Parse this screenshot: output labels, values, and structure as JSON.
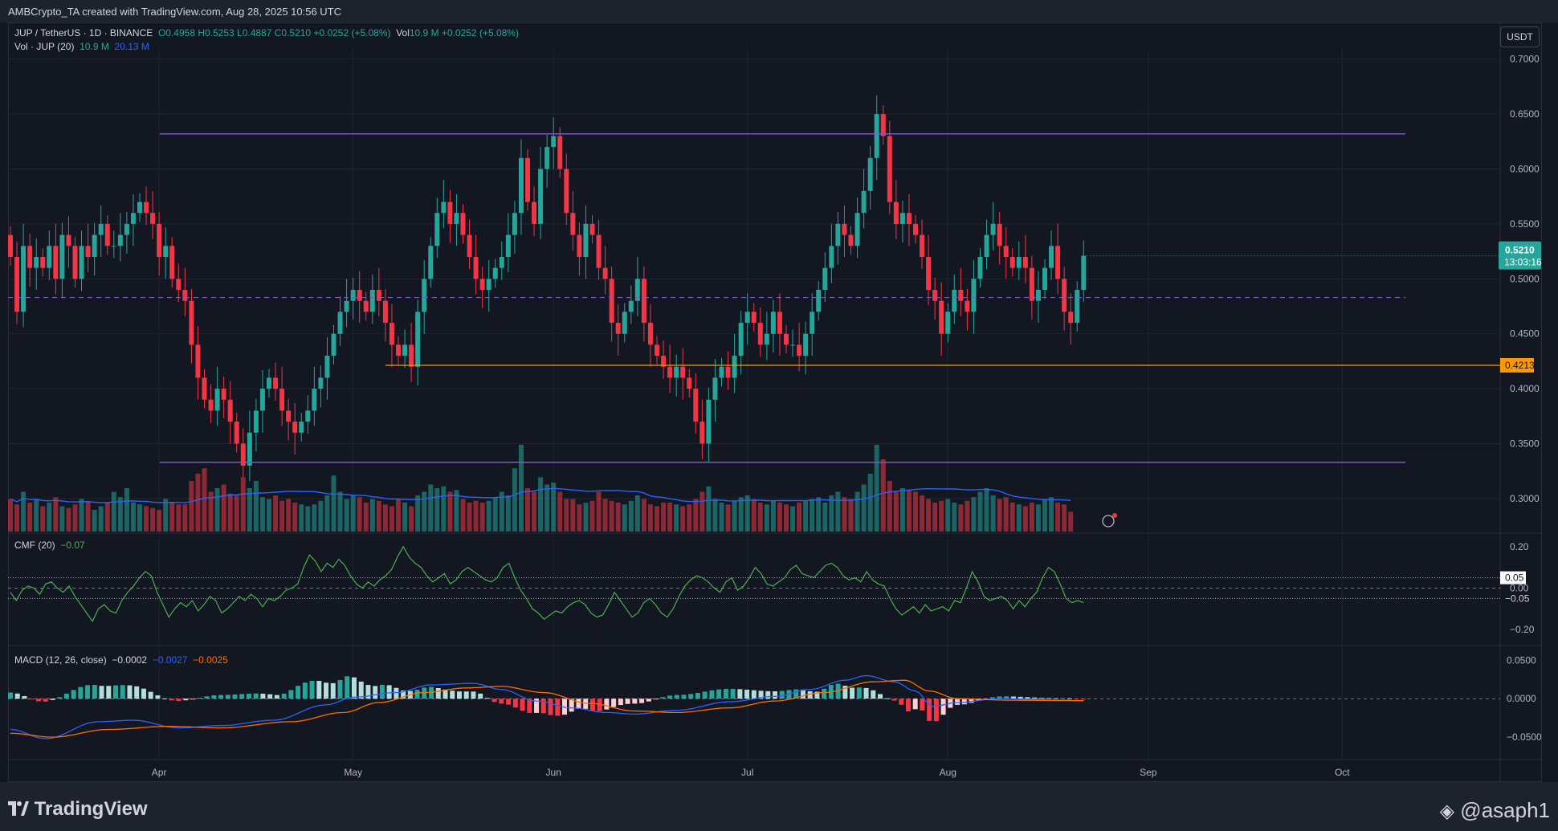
{
  "header": {
    "created_line": "AMBCrypto_TA created with TradingView.com, Aug 28, 2025 10:56 UTC"
  },
  "legend": {
    "symbol": "JUP / TetherUS · 1D · BINANCE",
    "ohlc": "O0.4958 H0.5253 L0.4887 C0.5210 +0.0252 (+5.08%)",
    "vol_label": "Vol",
    "vol_value": "10.9 M +0.0252 (+5.08%)",
    "vol_ind_label": "Vol · JUP (20)",
    "vol_ind_value": "10.9 M",
    "vol_ma_value": "20.13 M",
    "cmf_label": "CMF (20)",
    "cmf_value": "−0.07",
    "macd_label": "MACD (12, 26, close)",
    "macd_hist": "−0.0002",
    "macd_line": "−0.0027",
    "macd_signal": "−0.0025"
  },
  "currency_button": "USDT",
  "colors": {
    "bull": "#26a69a",
    "bear": "#f23645",
    "range_lines": "#7e57c2",
    "support": "#ff9800",
    "vol_ma": "#2962ff",
    "cmf": "#4caf50",
    "macd": "#2962ff",
    "signal": "#ff6d00"
  },
  "chart_data": [
    {
      "type": "candlestick",
      "pane": "price",
      "title": "JUP / TetherUS · 1D · BINANCE",
      "ylim": [
        0.27,
        0.71
      ],
      "y_ticks": [
        "0.7000",
        "0.6500",
        "0.6000",
        "0.5500",
        "0.5000",
        "0.4500",
        "0.4000",
        "0.3500",
        "0.3000"
      ],
      "x_tick_labels": [
        "Apr",
        "May",
        "Jun",
        "Jul",
        "Aug",
        "Sep",
        "Oct"
      ],
      "x_tick_dates": [
        "2025-04-01",
        "2025-05-01",
        "2025-06-01",
        "2025-07-01",
        "2025-08-01",
        "2025-09-01",
        "2025-10-01"
      ],
      "first_candle_date": "2025-03-09",
      "closes": [
        0.52,
        0.47,
        0.53,
        0.51,
        0.52,
        0.51,
        0.53,
        0.5,
        0.54,
        0.53,
        0.5,
        0.53,
        0.52,
        0.54,
        0.55,
        0.53,
        0.53,
        0.54,
        0.55,
        0.56,
        0.57,
        0.56,
        0.55,
        0.52,
        0.53,
        0.5,
        0.49,
        0.48,
        0.44,
        0.41,
        0.39,
        0.38,
        0.4,
        0.39,
        0.37,
        0.35,
        0.33,
        0.36,
        0.38,
        0.4,
        0.41,
        0.4,
        0.38,
        0.37,
        0.36,
        0.37,
        0.38,
        0.4,
        0.41,
        0.43,
        0.45,
        0.47,
        0.48,
        0.49,
        0.48,
        0.47,
        0.49,
        0.48,
        0.46,
        0.44,
        0.43,
        0.44,
        0.42,
        0.47,
        0.5,
        0.53,
        0.56,
        0.57,
        0.55,
        0.56,
        0.54,
        0.52,
        0.5,
        0.49,
        0.5,
        0.51,
        0.52,
        0.54,
        0.56,
        0.61,
        0.57,
        0.55,
        0.6,
        0.62,
        0.63,
        0.6,
        0.56,
        0.54,
        0.52,
        0.55,
        0.54,
        0.51,
        0.5,
        0.46,
        0.45,
        0.47,
        0.48,
        0.5,
        0.46,
        0.44,
        0.43,
        0.42,
        0.41,
        0.42,
        0.41,
        0.4,
        0.37,
        0.35,
        0.39,
        0.41,
        0.42,
        0.41,
        0.43,
        0.46,
        0.47,
        0.46,
        0.44,
        0.45,
        0.47,
        0.45,
        0.44,
        0.44,
        0.43,
        0.45,
        0.47,
        0.49,
        0.51,
        0.53,
        0.55,
        0.54,
        0.53,
        0.56,
        0.58,
        0.61,
        0.65,
        0.63,
        0.57,
        0.55,
        0.56,
        0.55,
        0.54,
        0.52,
        0.49,
        0.48,
        0.45,
        0.47,
        0.49,
        0.48,
        0.47,
        0.5,
        0.52,
        0.54,
        0.55,
        0.53,
        0.52,
        0.51,
        0.52,
        0.51,
        0.48,
        0.49,
        0.51,
        0.53,
        0.5,
        0.47,
        0.46,
        0.49,
        0.521
      ],
      "volumes_M": [
        18,
        15,
        22,
        16,
        18,
        14,
        16,
        19,
        14,
        13,
        15,
        18,
        17,
        12,
        14,
        16,
        22,
        19,
        24,
        16,
        15,
        14,
        13,
        12,
        18,
        16,
        15,
        15,
        28,
        32,
        35,
        22,
        24,
        26,
        21,
        20,
        30,
        24,
        28,
        19,
        18,
        20,
        17,
        18,
        16,
        15,
        14,
        15,
        17,
        20,
        31,
        22,
        18,
        20,
        19,
        16,
        18,
        17,
        15,
        14,
        18,
        16,
        14,
        20,
        22,
        26,
        24,
        25,
        22,
        23,
        18,
        16,
        17,
        16,
        17,
        19,
        22,
        20,
        35,
        48,
        24,
        22,
        30,
        26,
        27,
        22,
        18,
        18,
        15,
        16,
        17,
        22,
        18,
        17,
        16,
        15,
        17,
        20,
        18,
        15,
        14,
        16,
        16,
        15,
        14,
        15,
        18,
        22,
        25,
        18,
        16,
        15,
        17,
        19,
        20,
        18,
        16,
        15,
        17,
        16,
        15,
        14,
        16,
        17,
        18,
        19,
        16,
        20,
        22,
        19,
        18,
        22,
        26,
        32,
        48,
        40,
        28,
        22,
        24,
        23,
        22,
        20,
        18,
        16,
        17,
        18,
        16,
        15,
        17,
        19,
        22,
        24,
        20,
        18,
        19,
        16,
        15,
        14,
        16,
        15,
        18,
        19,
        16,
        15,
        10.9
      ],
      "volume_ma": 20.13,
      "last_price_label": "0.5210",
      "countdown_label": "13:03:16",
      "horizontal_lines": [
        {
          "kind": "range_top",
          "value": 0.632
        },
        {
          "kind": "mid_dashed",
          "value": 0.483
        },
        {
          "kind": "support",
          "value": 0.4213,
          "label": "0.4213"
        },
        {
          "kind": "range_bottom",
          "value": 0.333
        }
      ]
    },
    {
      "type": "line",
      "pane": "cmf",
      "title": "CMF (20)",
      "ylim": [
        -0.25,
        0.25
      ],
      "y_ticks": [
        "0.20",
        "0.00",
        "−0.20"
      ],
      "level_labels": [
        "0.05",
        "−0.05"
      ],
      "levels": [
        0.05,
        -0.05
      ],
      "values": [
        -0.02,
        -0.06,
        -0.01,
        0.01,
        0.0,
        -0.03,
        0.02,
        0.03,
        0.0,
        -0.02,
        0.01,
        -0.04,
        -0.08,
        -0.12,
        -0.16,
        -0.1,
        -0.08,
        -0.11,
        -0.12,
        -0.06,
        -0.02,
        0.01,
        0.05,
        0.08,
        0.06,
        -0.02,
        -0.08,
        -0.14,
        -0.1,
        -0.07,
        -0.09,
        -0.06,
        -0.11,
        -0.08,
        -0.04,
        -0.06,
        -0.12,
        -0.1,
        -0.07,
        -0.04,
        -0.06,
        -0.03,
        -0.05,
        -0.09,
        -0.05,
        -0.06,
        -0.04,
        -0.01,
        0.0,
        0.02,
        0.1,
        0.16,
        0.13,
        0.08,
        0.12,
        0.1,
        0.14,
        0.11,
        0.06,
        0.02,
        0.0,
        0.03,
        0.01,
        0.04,
        0.06,
        0.09,
        0.15,
        0.2,
        0.15,
        0.12,
        0.1,
        0.06,
        0.03,
        0.05,
        0.07,
        0.02,
        0.04,
        0.08,
        0.1,
        0.08,
        0.06,
        0.04,
        0.03,
        0.05,
        0.1,
        0.12,
        0.05,
        -0.01,
        -0.05,
        -0.1,
        -0.12,
        -0.15,
        -0.13,
        -0.11,
        -0.12,
        -0.09,
        -0.07,
        -0.06,
        -0.08,
        -0.12,
        -0.14,
        -0.13,
        -0.08,
        -0.02,
        -0.06,
        -0.1,
        -0.14,
        -0.12,
        -0.07,
        -0.05,
        -0.08,
        -0.12,
        -0.14,
        -0.1,
        -0.04,
        0.01,
        0.04,
        0.06,
        0.05,
        0.03,
        0.0,
        -0.02,
        0.03,
        0.05,
        -0.01,
        0.01,
        0.05,
        0.1,
        0.07,
        0.02,
        0.01,
        0.03,
        0.05,
        0.09,
        0.11,
        0.07,
        0.06,
        0.05,
        0.08,
        0.11,
        0.12,
        0.1,
        0.06,
        0.04,
        0.05,
        0.03,
        0.08,
        0.04,
        0.02,
        0.01,
        -0.05,
        -0.1,
        -0.13,
        -0.11,
        -0.09,
        -0.12,
        -0.08,
        -0.11,
        -0.1,
        -0.09,
        -0.11,
        -0.06,
        -0.07,
        0.0,
        0.08,
        0.03,
        -0.04,
        -0.06,
        -0.05,
        -0.04,
        -0.06,
        -0.1,
        -0.06,
        -0.09,
        -0.05,
        -0.02,
        0.05,
        0.1,
        0.08,
        0.02,
        -0.05,
        -0.07,
        -0.06,
        -0.07
      ]
    },
    {
      "type": "bar+line",
      "pane": "macd",
      "title": "MACD (12, 26, close)",
      "ylim": [
        -0.075,
        0.065
      ],
      "y_ticks": [
        "0.0500",
        "0.0000",
        "−0.0500"
      ],
      "series": [
        {
          "name": "MACD",
          "anchors": [
            [
              0,
              -0.04
            ],
            [
              10,
              -0.052
            ],
            [
              25,
              -0.03
            ],
            [
              35,
              -0.028
            ],
            [
              48,
              -0.038
            ],
            [
              60,
              -0.035
            ],
            [
              75,
              -0.028
            ],
            [
              90,
              -0.008
            ],
            [
              98,
              0.002
            ],
            [
              110,
              0.008
            ],
            [
              120,
              0.018
            ],
            [
              132,
              0.02
            ],
            [
              140,
              0.012
            ],
            [
              150,
              -0.003
            ],
            [
              160,
              -0.012
            ],
            [
              170,
              -0.018
            ],
            [
              178,
              -0.02
            ],
            [
              190,
              -0.015
            ],
            [
              205,
              -0.004
            ],
            [
              218,
              0.003
            ],
            [
              228,
              0.012
            ],
            [
              238,
              0.024
            ],
            [
              244,
              0.03
            ],
            [
              252,
              0.022
            ],
            [
              258,
              0.01
            ],
            [
              263,
              -0.01
            ],
            [
              270,
              -0.005
            ],
            [
              282,
              0.0
            ],
            [
              300,
              -0.002
            ],
            [
              306,
              -0.0027
            ]
          ]
        },
        {
          "name": "Signal",
          "anchors": [
            [
              0,
              -0.045
            ],
            [
              12,
              -0.05
            ],
            [
              28,
              -0.04
            ],
            [
              45,
              -0.036
            ],
            [
              60,
              -0.038
            ],
            [
              80,
              -0.03
            ],
            [
              95,
              -0.018
            ],
            [
              105,
              -0.005
            ],
            [
              118,
              0.008
            ],
            [
              130,
              0.014
            ],
            [
              140,
              0.016
            ],
            [
              152,
              0.008
            ],
            [
              165,
              -0.006
            ],
            [
              178,
              -0.016
            ],
            [
              190,
              -0.018
            ],
            [
              205,
              -0.012
            ],
            [
              218,
              -0.003
            ],
            [
              232,
              0.008
            ],
            [
              246,
              0.022
            ],
            [
              255,
              0.024
            ],
            [
              262,
              0.01
            ],
            [
              270,
              0.0
            ],
            [
              285,
              -0.002
            ],
            [
              306,
              -0.0025
            ]
          ]
        }
      ],
      "last_histogram": -0.0002
    }
  ],
  "watermark": {
    "logo_text": "TradingView",
    "handle": "@asaph1"
  }
}
